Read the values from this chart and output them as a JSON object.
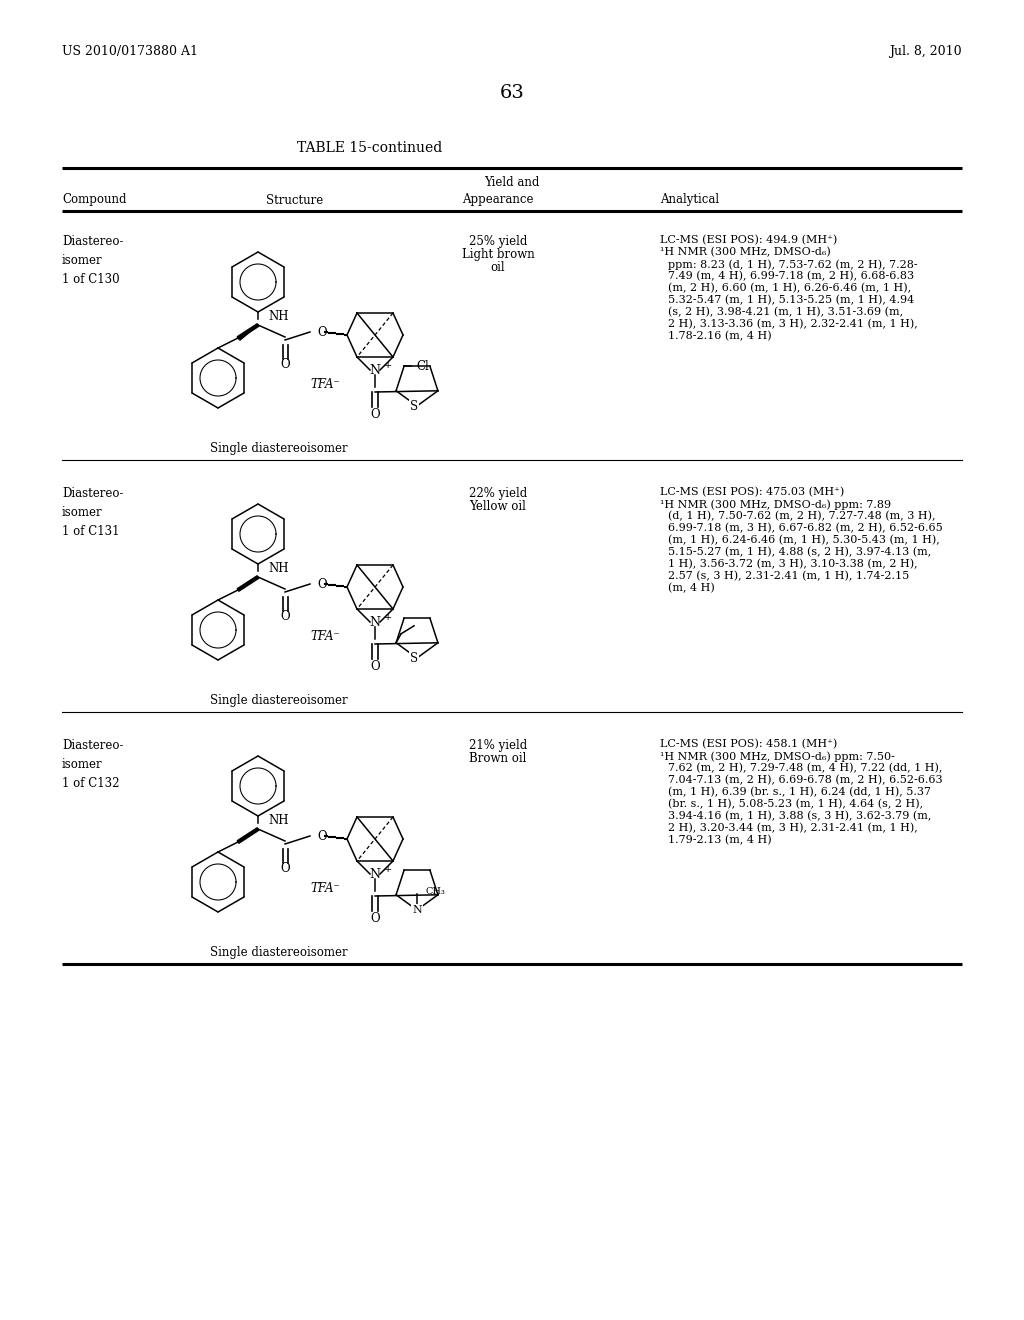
{
  "page_header_left": "US 2010/0173880 A1",
  "page_header_right": "Jul. 8, 2010",
  "page_number": "63",
  "table_title": "TABLE 15-continued",
  "background_color": "#ffffff",
  "text_color": "#000000",
  "rows": [
    {
      "compound": "Diastereo-\nisomer\n1 of C130",
      "structure_label": "Single diastereoisomer",
      "yield_line1": "25% yield",
      "yield_line2": "Light brown",
      "yield_line3": "oil",
      "analytical_line1": "LC-MS (ESI POS): 494.9 (MH⁺)",
      "analytical_line2": "¹H NMR (300 MHz, DMSO-d₆)",
      "analytical_rest": "ppm: 8.23 (d, 1 H), 7.53-7.62 (m, 2 H), 7.28-\n7.49 (m, 4 H), 6.99-7.18 (m, 2 H), 6.68-6.83\n(m, 2 H), 6.60 (m, 1 H), 6.26-6.46 (m, 1 H),\n5.32-5.47 (m, 1 H), 5.13-5.25 (m, 1 H), 4.94\n(s, 2 H), 3.98-4.21 (m, 1 H), 3.51-3.69 (m,\n2 H), 3.13-3.36 (m, 3 H), 2.32-2.41 (m, 1 H),\n1.78-2.16 (m, 4 H)"
    },
    {
      "compound": "Diastereo-\nisomer\n1 of C131",
      "structure_label": "Single diastereoisomer",
      "yield_line1": "22% yield",
      "yield_line2": "Yellow oil",
      "yield_line3": "",
      "analytical_line1": "LC-MS (ESI POS): 475.03 (MH⁺)",
      "analytical_line2": "¹H NMR (300 MHz, DMSO-d₆) ppm: 7.89",
      "analytical_rest": "(d, 1 H), 7.50-7.62 (m, 2 H), 7.27-7.48 (m, 3 H),\n6.99-7.18 (m, 3 H), 6.67-6.82 (m, 2 H), 6.52-6.65\n(m, 1 H), 6.24-6.46 (m, 1 H), 5.30-5.43 (m, 1 H),\n5.15-5.27 (m, 1 H), 4.88 (s, 2 H), 3.97-4.13 (m,\n1 H), 3.56-3.72 (m, 3 H), 3.10-3.38 (m, 2 H),\n2.57 (s, 3 H), 2.31-2.41 (m, 1 H), 1.74-2.15\n(m, 4 H)"
    },
    {
      "compound": "Diastereo-\nisomer\n1 of C132",
      "structure_label": "Single diastereoisomer",
      "yield_line1": "21% yield",
      "yield_line2": "Brown oil",
      "yield_line3": "",
      "analytical_line1": "LC-MS (ESI POS): 458.1 (MH⁺)",
      "analytical_line2": "¹H NMR (300 MHz, DMSO-d₆) ppm: 7.50-",
      "analytical_rest": "7.62 (m, 2 H), 7.29-7.48 (m, 4 H), 7.22 (dd, 1 H),\n7.04-7.13 (m, 2 H), 6.69-6.78 (m, 2 H), 6.52-6.63\n(m, 1 H), 6.39 (br. s., 1 H), 6.24 (dd, 1 H), 5.37\n(br. s., 1 H), 5.08-5.23 (m, 1 H), 4.64 (s, 2 H),\n3.94-4.16 (m, 1 H), 3.88 (s, 3 H), 3.62-3.79 (m,\n2 H), 3.20-3.44 (m, 3 H), 2.31-2.41 (m, 1 H),\n1.79-2.13 (m, 4 H)"
    }
  ]
}
